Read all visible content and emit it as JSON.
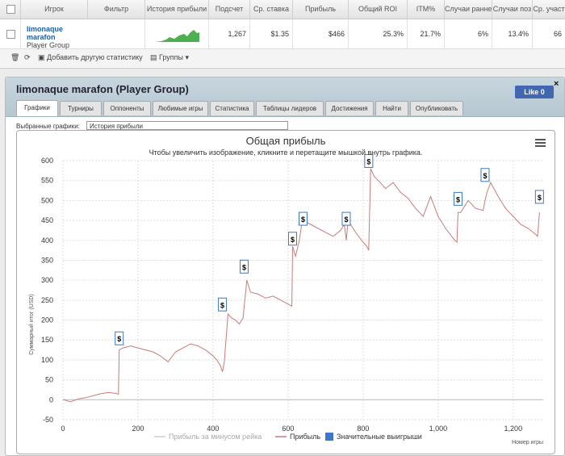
{
  "table": {
    "headers": [
      "Игрок",
      "Фильтр",
      "История прибыли",
      "Подсчет",
      "Ср. ставка",
      "Прибыль",
      "Общий ROI",
      "ITM%",
      "Случаи ранне",
      "Случаи поз",
      "Ср. участ"
    ],
    "row": {
      "player_name_1": "limonaque",
      "player_name_2": "marafon",
      "group": "Player Group",
      "count": "1,267",
      "avg_stake": "$1.35",
      "profit": "$466",
      "roi": "25.3%",
      "itm": "21.7%",
      "early": "6%",
      "late": "13.4%",
      "avg_field": "66"
    },
    "toolbar": {
      "add_stat": "Добавить другую статистику",
      "groups": "Группы"
    }
  },
  "panel": {
    "title": "limonaque marafon (Player Group)",
    "close": "×",
    "like": "Like 0",
    "tabs": [
      "Графики",
      "Турниры",
      "Оппоненты",
      "Любимые игры",
      "Статистика",
      "Таблицы лидеров",
      "Достижения",
      "Найти",
      "Опубликовать"
    ],
    "selected_label": "Выбранные графики:",
    "selected_value": "История прибыли"
  },
  "chart_data": {
    "type": "line",
    "title": "Общая прибыль",
    "subtitle": "Чтобы увеличить изображение, кликните и перетащите мышкой внутрь графика.",
    "xlabel": "Номер игры",
    "ylabel": "Суммарный итог (USD)",
    "xlim": [
      0,
      1280
    ],
    "ylim": [
      -50,
      600
    ],
    "x_ticks": [
      0,
      200,
      400,
      600,
      800,
      1000,
      1200
    ],
    "x_tick_labels": [
      "0",
      "200",
      "400",
      "600",
      "800",
      "1,000",
      "1,200"
    ],
    "y_ticks": [
      -50,
      0,
      50,
      100,
      150,
      200,
      250,
      300,
      350,
      400,
      450,
      500,
      550,
      600
    ],
    "line_color": "#c97b7b",
    "series": [
      {
        "name": "Прибыль",
        "x": [
          0,
          10,
          20,
          40,
          60,
          80,
          100,
          120,
          140,
          148,
          150,
          160,
          180,
          200,
          220,
          240,
          260,
          280,
          300,
          320,
          340,
          360,
          380,
          400,
          410,
          420,
          425,
          430,
          440,
          450,
          460,
          470,
          480,
          490,
          500,
          520,
          540,
          560,
          580,
          600,
          610,
          612,
          620,
          630,
          640,
          650,
          660,
          680,
          700,
          720,
          740,
          750,
          755,
          760,
          780,
          800,
          810,
          815,
          820,
          830,
          840,
          860,
          880,
          900,
          920,
          940,
          960,
          980,
          1000,
          1020,
          1040,
          1050,
          1053,
          1060,
          1080,
          1100,
          1120,
          1125,
          1130,
          1140,
          1160,
          1180,
          1200,
          1220,
          1240,
          1260,
          1265,
          1270
        ],
        "y": [
          0,
          -2,
          -5,
          2,
          5,
          10,
          15,
          18,
          16,
          14,
          125,
          130,
          135,
          130,
          125,
          120,
          110,
          95,
          120,
          130,
          140,
          135,
          125,
          110,
          100,
          85,
          70,
          95,
          215,
          205,
          200,
          190,
          205,
          300,
          270,
          265,
          255,
          260,
          250,
          240,
          235,
          385,
          360,
          400,
          465,
          445,
          440,
          430,
          420,
          410,
          425,
          440,
          400,
          450,
          420,
          395,
          385,
          375,
          580,
          560,
          550,
          530,
          545,
          520,
          505,
          480,
          460,
          510,
          460,
          430,
          405,
          395,
          470,
          470,
          500,
          480,
          475,
          500,
          520,
          545,
          510,
          480,
          460,
          440,
          430,
          415,
          410,
          470
        ],
        "color": "#c97b7b"
      }
    ],
    "markers": {
      "name": "Значительные выигрыши",
      "x": [
        150,
        425,
        483,
        612,
        640,
        755,
        815,
        1053,
        1125,
        1270
      ],
      "y": [
        150,
        235,
        330,
        400,
        450,
        450,
        595,
        500,
        560,
        505
      ],
      "label": "$"
    },
    "legend": [
      {
        "label": "Прибыль за минусом рейка",
        "color": "#cccccc"
      },
      {
        "label": "Прибыль",
        "color": "#c97b7b"
      },
      {
        "label": "Значительные выигрыши",
        "color": "#3c78c8"
      }
    ],
    "legend_position": "bottom",
    "grid": true
  }
}
